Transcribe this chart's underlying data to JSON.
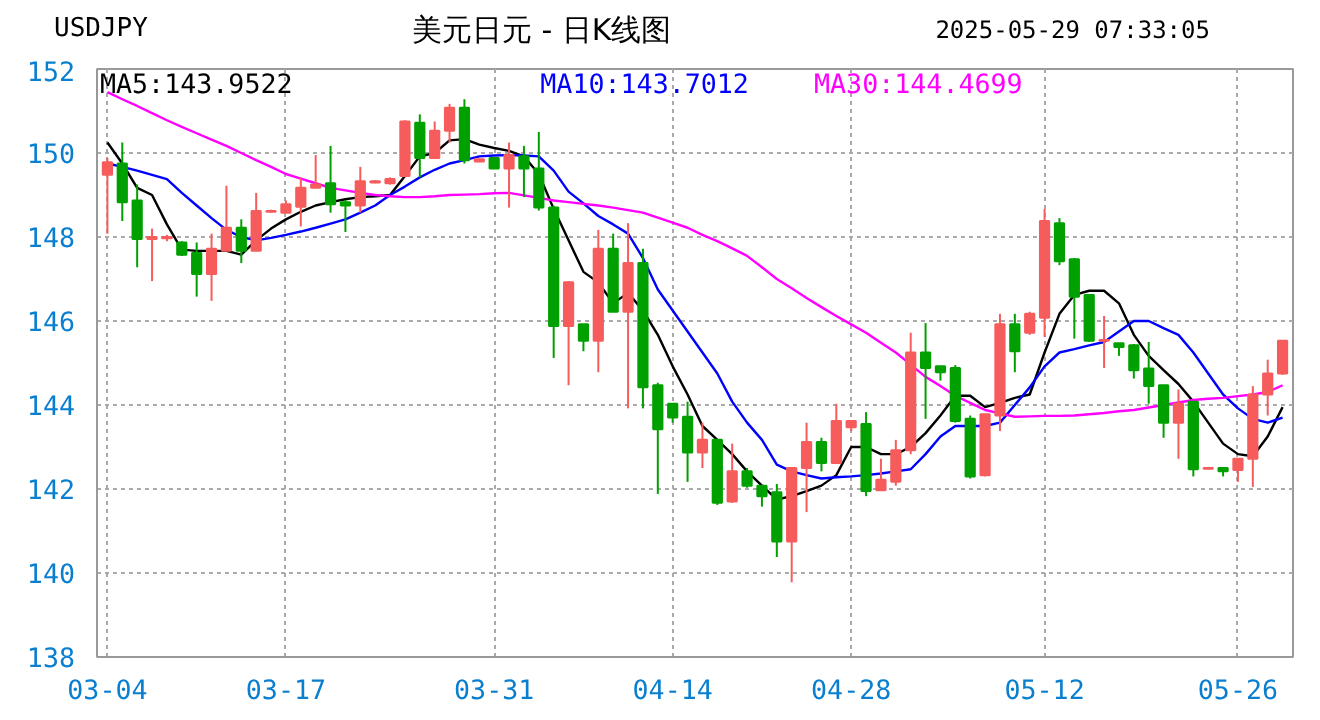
{
  "chart_data": {
    "type": "candlestick",
    "title": "美元日元 - 日K线图",
    "subtitle": "USDJPY",
    "annotations": [
      "2025-05-29 07:33:05"
    ],
    "categories": [
      "03-04",
      null,
      null,
      null,
      null,
      null,
      null,
      null,
      null,
      null,
      null,
      null,
      "03-17",
      null,
      null,
      null,
      null,
      null,
      null,
      null,
      null,
      null,
      null,
      null,
      null,
      null,
      "03-31",
      null,
      null,
      null,
      null,
      null,
      null,
      null,
      null,
      null,
      null,
      null,
      "04-14",
      null,
      null,
      null,
      null,
      null,
      null,
      null,
      null,
      null,
      null,
      null,
      "04-28",
      null,
      null,
      null,
      null,
      null,
      null,
      null,
      null,
      null,
      null,
      null,
      null,
      "05-12",
      null,
      null,
      null,
      null,
      null,
      null,
      null,
      null,
      null,
      null,
      null,
      null,
      "05-26",
      null,
      null,
      null
    ],
    "ohlc": [
      [
        149.48,
        149.88,
        148.08,
        149.78
      ],
      [
        149.75,
        150.25,
        148.38,
        148.83
      ],
      [
        148.87,
        149.25,
        147.28,
        147.95
      ],
      [
        147.95,
        148.2,
        146.95,
        148.0
      ],
      [
        147.97,
        148.05,
        147.9,
        148.0
      ],
      [
        147.87,
        147.9,
        147.55,
        147.58
      ],
      [
        147.62,
        147.87,
        146.58,
        147.12
      ],
      [
        147.12,
        148.08,
        146.48,
        147.72
      ],
      [
        147.67,
        149.22,
        147.67,
        148.22
      ],
      [
        148.22,
        148.42,
        147.38,
        147.67
      ],
      [
        147.67,
        149.05,
        147.67,
        148.62
      ],
      [
        148.6,
        148.65,
        148.58,
        148.62
      ],
      [
        148.58,
        148.87,
        148.58,
        148.78
      ],
      [
        148.72,
        149.42,
        148.25,
        149.17
      ],
      [
        149.17,
        149.95,
        149.17,
        149.25
      ],
      [
        149.28,
        150.17,
        148.58,
        148.78
      ],
      [
        148.83,
        148.88,
        148.12,
        148.75
      ],
      [
        148.75,
        149.67,
        148.58,
        149.33
      ],
      [
        149.3,
        149.35,
        149.28,
        149.33
      ],
      [
        149.28,
        149.42,
        149.25,
        149.38
      ],
      [
        149.45,
        150.78,
        149.45,
        150.75
      ],
      [
        150.72,
        150.92,
        149.42,
        149.88
      ],
      [
        149.88,
        150.75,
        149.88,
        150.53
      ],
      [
        150.53,
        151.17,
        150.25,
        151.08
      ],
      [
        151.08,
        151.28,
        149.75,
        149.83
      ],
      [
        149.8,
        149.87,
        149.78,
        149.85
      ],
      [
        149.88,
        149.9,
        149.62,
        149.63
      ],
      [
        149.63,
        150.25,
        148.7,
        149.95
      ],
      [
        149.92,
        150.17,
        148.95,
        149.63
      ],
      [
        149.63,
        150.5,
        148.63,
        148.7
      ],
      [
        148.7,
        148.75,
        145.12,
        145.88
      ],
      [
        145.88,
        146.95,
        144.47,
        146.92
      ],
      [
        145.92,
        145.92,
        145.28,
        145.53
      ],
      [
        145.53,
        148.17,
        144.78,
        147.72
      ],
      [
        147.72,
        148.08,
        146.22,
        146.22
      ],
      [
        146.22,
        148.33,
        143.92,
        147.38
      ],
      [
        147.38,
        147.72,
        143.92,
        144.42
      ],
      [
        144.47,
        144.53,
        141.88,
        143.42
      ],
      [
        144.03,
        144.03,
        143.58,
        143.7
      ],
      [
        143.72,
        144.08,
        142.17,
        142.87
      ],
      [
        142.87,
        143.58,
        142.5,
        143.17
      ],
      [
        143.17,
        143.17,
        141.62,
        141.67
      ],
      [
        141.7,
        143.08,
        141.67,
        142.42
      ],
      [
        142.42,
        142.5,
        142.03,
        142.08
      ],
      [
        142.08,
        142.08,
        141.58,
        141.83
      ],
      [
        141.92,
        142.12,
        140.38,
        140.75
      ],
      [
        140.75,
        142.5,
        139.78,
        142.5
      ],
      [
        142.5,
        143.58,
        141.45,
        143.12
      ],
      [
        143.12,
        143.22,
        142.42,
        142.62
      ],
      [
        142.62,
        144.03,
        142.62,
        143.62
      ],
      [
        143.47,
        143.62,
        143.38,
        143.62
      ],
      [
        143.55,
        143.83,
        141.83,
        141.95
      ],
      [
        141.97,
        142.72,
        141.97,
        142.22
      ],
      [
        142.17,
        143.17,
        142.08,
        142.92
      ],
      [
        142.92,
        145.72,
        142.83,
        145.25
      ],
      [
        145.25,
        145.95,
        143.67,
        144.88
      ],
      [
        144.92,
        144.92,
        144.58,
        144.78
      ],
      [
        144.88,
        144.95,
        143.58,
        143.62
      ],
      [
        143.67,
        143.75,
        142.25,
        142.3
      ],
      [
        142.33,
        143.78,
        142.3,
        143.78
      ],
      [
        143.75,
        146.17,
        143.38,
        145.92
      ],
      [
        145.92,
        146.17,
        144.78,
        145.28
      ],
      [
        145.72,
        146.22,
        145.67,
        146.17
      ],
      [
        146.08,
        148.67,
        145.62,
        148.38
      ],
      [
        148.33,
        148.45,
        147.33,
        147.42
      ],
      [
        147.47,
        147.5,
        145.58,
        146.58
      ],
      [
        146.62,
        146.62,
        145.5,
        145.53
      ],
      [
        145.53,
        146.12,
        144.88,
        145.55
      ],
      [
        145.47,
        145.47,
        145.17,
        145.38
      ],
      [
        145.42,
        145.45,
        144.63,
        144.83
      ],
      [
        144.87,
        145.5,
        144.03,
        144.45
      ],
      [
        144.47,
        144.47,
        143.22,
        143.58
      ],
      [
        143.58,
        144.37,
        142.72,
        144.03
      ],
      [
        144.08,
        144.08,
        142.3,
        142.47
      ],
      [
        142.48,
        142.52,
        142.47,
        142.5
      ],
      [
        142.5,
        142.5,
        142.3,
        142.42
      ],
      [
        142.45,
        142.72,
        142.17,
        142.72
      ],
      [
        142.72,
        144.45,
        142.05,
        144.25
      ],
      [
        144.25,
        145.08,
        143.75,
        144.75
      ],
      [
        144.75,
        145.53,
        144.72,
        145.53
      ]
    ],
    "colors": [
      "#f65c5c",
      "#00a000",
      "#00a000",
      "#f65c5c",
      "#f65c5c",
      "#00a000",
      "#00a000",
      "#f65c5c",
      "#f65c5c",
      "#00a000",
      "#f65c5c",
      "#f65c5c",
      "#f65c5c",
      "#f65c5c",
      "#f65c5c",
      "#00a000",
      "#00a000",
      "#f65c5c",
      "#f65c5c",
      "#f65c5c",
      "#f65c5c",
      "#00a000",
      "#f65c5c",
      "#f65c5c",
      "#00a000",
      "#f65c5c",
      "#00a000",
      "#f65c5c",
      "#00a000",
      "#00a000",
      "#00a000",
      "#f65c5c",
      "#00a000",
      "#f65c5c",
      "#00a000",
      "#f65c5c",
      "#00a000",
      "#00a000",
      "#00a000",
      "#00a000",
      "#f65c5c",
      "#00a000",
      "#f65c5c",
      "#00a000",
      "#00a000",
      "#00a000",
      "#f65c5c",
      "#f65c5c",
      "#00a000",
      "#f65c5c",
      "#f65c5c",
      "#00a000",
      "#f65c5c",
      "#f65c5c",
      "#f65c5c",
      "#00a000",
      "#00a000",
      "#00a000",
      "#00a000",
      "#f65c5c",
      "#f65c5c",
      "#00a000",
      "#f65c5c",
      "#f65c5c",
      "#00a000",
      "#00a000",
      "#00a000",
      "#f65c5c",
      "#00a000",
      "#00a000",
      "#00a000",
      "#00a000",
      "#f65c5c",
      "#00a000",
      "#f65c5c",
      "#00a000",
      "#f65c5c",
      "#f65c5c",
      "#f65c5c",
      "#f65c5c"
    ],
    "series": [
      {
        "type": "line",
        "name": "MA5:143.9522",
        "color": "#000000",
        "values": [
          150.25,
          149.75,
          149.17,
          149.0,
          148.3,
          147.7,
          147.67,
          147.67,
          147.67,
          147.58,
          147.92,
          148.2,
          148.42,
          148.6,
          148.75,
          148.83,
          148.9,
          148.95,
          148.97,
          149.0,
          149.45,
          149.92,
          150.0,
          150.3,
          150.33,
          150.2,
          150.12,
          150.05,
          149.92,
          149.5,
          148.67,
          147.92,
          147.17,
          146.92,
          146.42,
          146.67,
          146.25,
          145.67,
          144.92,
          144.25,
          143.5,
          143.17,
          142.83,
          142.42,
          142.08,
          141.75,
          141.83,
          141.95,
          142.08,
          142.33,
          143.0,
          143.0,
          142.83,
          142.83,
          143.0,
          143.33,
          143.75,
          144.22,
          144.22,
          143.95,
          144.05,
          144.17,
          144.25,
          145.25,
          146.17,
          146.62,
          146.72,
          146.72,
          146.42,
          145.67,
          145.17,
          144.83,
          144.5,
          144.08,
          143.58,
          143.08,
          142.83,
          142.78,
          143.25,
          143.95
        ]
      },
      {
        "type": "line",
        "name": "MA10:143.7012",
        "color": "#0000ff",
        "values": [
          149.75,
          149.67,
          149.58,
          149.48,
          149.38,
          149.05,
          148.75,
          148.45,
          148.17,
          148.0,
          147.92,
          147.98,
          148.05,
          148.13,
          148.22,
          148.32,
          148.42,
          148.58,
          148.75,
          149.0,
          149.2,
          149.42,
          149.6,
          149.75,
          149.83,
          149.92,
          149.94,
          149.95,
          149.94,
          149.92,
          149.58,
          149.08,
          148.8,
          148.5,
          148.3,
          148.08,
          147.5,
          146.75,
          146.25,
          145.75,
          145.25,
          144.75,
          144.08,
          143.58,
          143.17,
          142.58,
          142.42,
          142.33,
          142.25,
          142.28,
          142.3,
          142.33,
          142.37,
          142.42,
          142.47,
          142.83,
          143.25,
          143.5,
          143.5,
          143.5,
          143.58,
          144.0,
          144.42,
          144.92,
          145.25,
          145.33,
          145.42,
          145.5,
          145.75,
          146.0,
          146.0,
          145.83,
          145.67,
          145.25,
          144.75,
          144.25,
          143.92,
          143.67,
          143.58,
          143.7
        ]
      },
      {
        "type": "line",
        "name": "MA30:144.4699",
        "color": "#ff00ff",
        "values": [
          151.45,
          151.28,
          151.12,
          150.95,
          150.78,
          150.62,
          150.47,
          150.32,
          150.17,
          150.0,
          149.83,
          149.67,
          149.5,
          149.39,
          149.28,
          149.17,
          149.11,
          149.05,
          149.0,
          148.97,
          148.95,
          148.95,
          148.97,
          149.0,
          149.01,
          149.02,
          149.04,
          149.05,
          148.99,
          148.93,
          148.87,
          148.83,
          148.79,
          148.75,
          148.7,
          148.64,
          148.58,
          148.46,
          148.34,
          148.22,
          148.05,
          147.9,
          147.73,
          147.55,
          147.28,
          147.0,
          146.78,
          146.55,
          146.33,
          146.12,
          145.92,
          145.72,
          145.48,
          145.25,
          144.96,
          144.67,
          144.45,
          144.22,
          144.05,
          143.88,
          143.8,
          143.72,
          143.73,
          143.74,
          143.74,
          143.75,
          143.78,
          143.81,
          143.85,
          143.88,
          143.94,
          144.0,
          144.06,
          144.12,
          144.15,
          144.17,
          144.21,
          144.25,
          144.31,
          144.47
        ]
      }
    ],
    "ylim": [
      138,
      152
    ],
    "yticks": [
      138,
      140,
      142,
      144,
      146,
      148,
      150,
      152
    ],
    "grid": true,
    "legend": "top left"
  }
}
